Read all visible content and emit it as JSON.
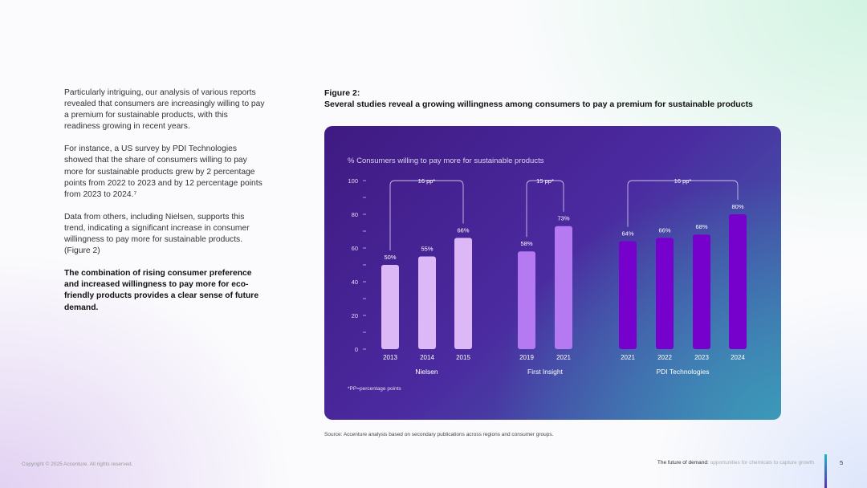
{
  "body_text": {
    "p1": "Particularly intriguing, our analysis of various reports revealed that consumers are increasingly willing to pay a premium for sustainable products, with this readiness growing in recent years.",
    "p2": "For instance, a US survey by PDI Technologies showed that the share of consumers willing to pay more for sustainable products grew by 2 percentage points from 2022 to 2023 and by 12 percentage points from 2023 to 2024.⁷",
    "p3": "Data from others, including Nielsen, supports this trend, indicating a significant increase in consumer willingness to pay more for sustainable products. (Figure 2)",
    "p4": "The combination of rising consumer preference and increased willingness to pay more for eco-friendly products provides a clear sense of future demand."
  },
  "figure": {
    "label": "Figure 2:",
    "title": "Several studies reveal a growing willingness among consumers to pay a premium for sustainable products"
  },
  "source": "Source: Accenture analysis based on secondary publications across regions and consumer groups.",
  "footer": {
    "copyright": "Copyright © 2025 Accenture. All rights reserved.",
    "title_bold": "The future of demand:",
    "title_light": " opportunities for chemicals to capture growth",
    "page": "5"
  },
  "colors": {
    "nielsen_bar": "#dcb8f6",
    "first_insight_bar": "#b57af2",
    "pdi_bar": "#7600cc"
  },
  "chart_data": {
    "type": "bar",
    "title": "% Consumers willing to pay more for sustainable products",
    "ylim": [
      0,
      100
    ],
    "yticks": [
      "0",
      "20",
      "40",
      "60",
      "80",
      "100"
    ],
    "footnote": "*PP=percentage points",
    "grid": false,
    "groups": [
      {
        "name": "Nielsen",
        "categories": [
          "2013",
          "2014",
          "2015"
        ],
        "values": [
          50,
          55,
          66
        ],
        "labels": [
          "50%",
          "55%",
          "66%"
        ],
        "bracket": "16 pp*"
      },
      {
        "name": "First Insight",
        "categories": [
          "2019",
          "2021"
        ],
        "values": [
          58,
          73
        ],
        "labels": [
          "58%",
          "73%"
        ],
        "bracket": "15 pp*"
      },
      {
        "name": "PDI Technologies",
        "categories": [
          "2021",
          "2022",
          "2023",
          "2024"
        ],
        "values": [
          64,
          66,
          68,
          80
        ],
        "labels": [
          "64%",
          "66%",
          "68%",
          "80%"
        ],
        "bracket": "16 pp*"
      }
    ]
  }
}
